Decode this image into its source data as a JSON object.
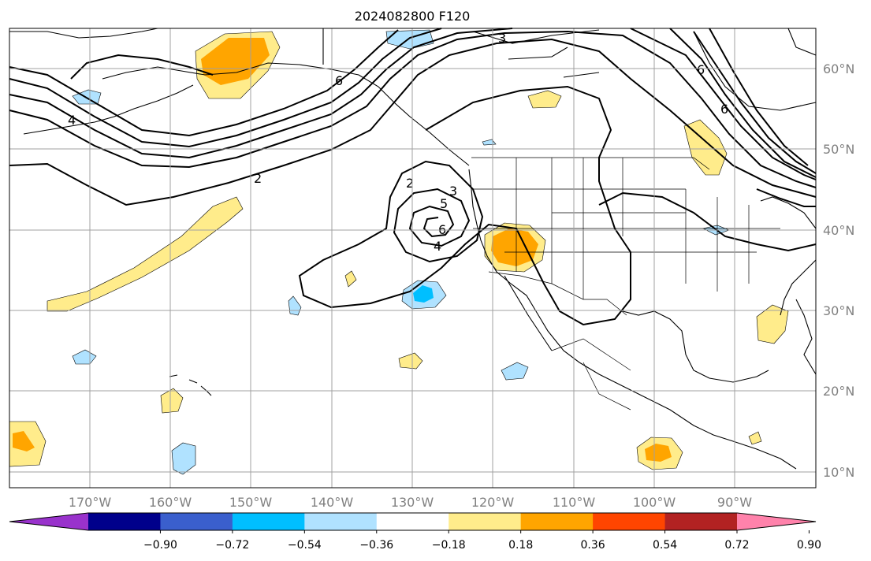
{
  "title": "2024082800 F120",
  "lon_labels": [
    "170°W",
    "160°W",
    "150°W",
    "140°W",
    "130°W",
    "120°W",
    "110°W",
    "100°W",
    "90°W"
  ],
  "lat_labels": [
    "60°N",
    "50°N",
    "40°N",
    "30°N",
    "20°N",
    "10°N"
  ],
  "contour_labels": [
    "3",
    "6",
    "4",
    "2",
    "2",
    "3",
    "5",
    "6",
    "4",
    "6",
    "6"
  ],
  "colorbar": {
    "ticks": [
      "−0.90",
      "−0.72",
      "−0.54",
      "−0.36",
      "−0.18",
      "0.18",
      "0.36",
      "0.54",
      "0.72",
      "0.90"
    ],
    "colors": [
      "#9932cc",
      "#00008b",
      "#3a5fcd",
      "#00bfff",
      "#b0e2ff",
      "#ffffff",
      "#ffec8b",
      "#ffa500",
      "#ff4500",
      "#b22222",
      "#ff82ab"
    ]
  },
  "colors": {
    "light_yellow": "#ffec8b",
    "orange": "#ffa500",
    "light_blue": "#b0e2ff",
    "deep_sky_blue": "#00bfff"
  }
}
